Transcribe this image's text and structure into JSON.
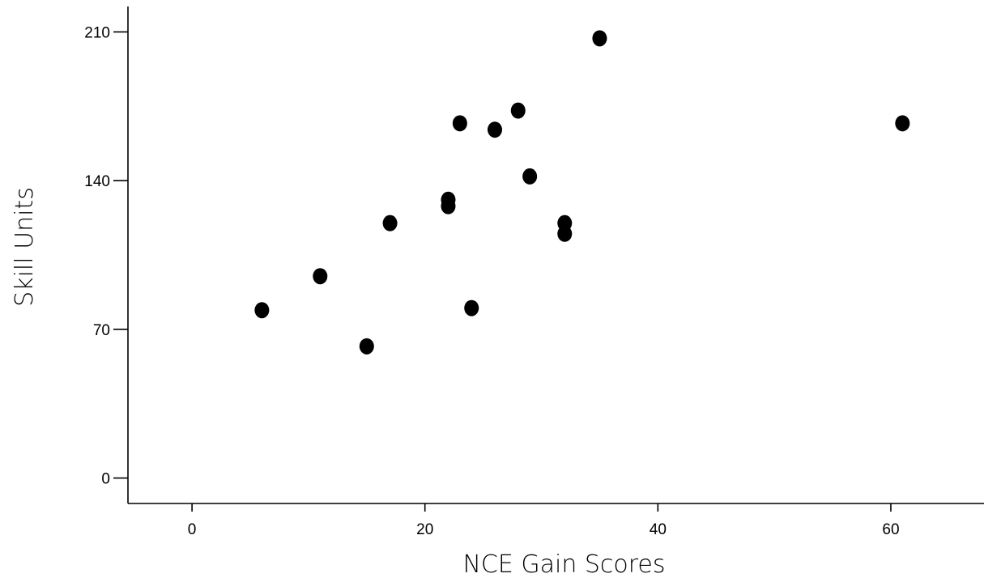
{
  "chart_data": {
    "type": "scatter",
    "title": "",
    "xlabel": "NCE Gain Scores",
    "ylabel": "Skill Units",
    "xlim": [
      -5.5,
      68
    ],
    "ylim": [
      -12,
      222
    ],
    "xticks": [
      0,
      20,
      40,
      60
    ],
    "yticks": [
      0,
      70,
      140,
      210
    ],
    "xtick_labels": [
      "0",
      "20",
      "40",
      "60"
    ],
    "ytick_labels": [
      "0",
      "70",
      "140",
      "210"
    ],
    "grid": false,
    "legend": null,
    "marker_color": "#000000",
    "series": [
      {
        "points": [
          {
            "x": 6,
            "y": 79
          },
          {
            "x": 11,
            "y": 95
          },
          {
            "x": 15,
            "y": 62
          },
          {
            "x": 17,
            "y": 120
          },
          {
            "x": 22,
            "y": 131
          },
          {
            "x": 22,
            "y": 128
          },
          {
            "x": 23,
            "y": 167
          },
          {
            "x": 24,
            "y": 80
          },
          {
            "x": 26,
            "y": 164
          },
          {
            "x": 28,
            "y": 173
          },
          {
            "x": 29,
            "y": 142
          },
          {
            "x": 32,
            "y": 120
          },
          {
            "x": 32,
            "y": 115
          },
          {
            "x": 35,
            "y": 207
          },
          {
            "x": 61,
            "y": 167
          }
        ]
      }
    ]
  }
}
